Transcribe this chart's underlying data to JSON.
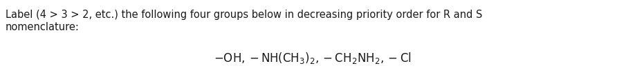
{
  "line1": "Label (4 > 3 > 2, etc.) the following four groups below in decreasing priority order for R and S",
  "line2": "nomenclature:",
  "formula": "$\\mathsf{-OH, -NH(CH_3)_2, - CH_2NH_2, -Cl}$",
  "background_color": "#ffffff",
  "text_color": "#1a1a1a",
  "font_size_body": 10.5,
  "font_size_formula": 12.0,
  "fig_width": 9.05,
  "fig_height": 1.12,
  "dpi": 100
}
